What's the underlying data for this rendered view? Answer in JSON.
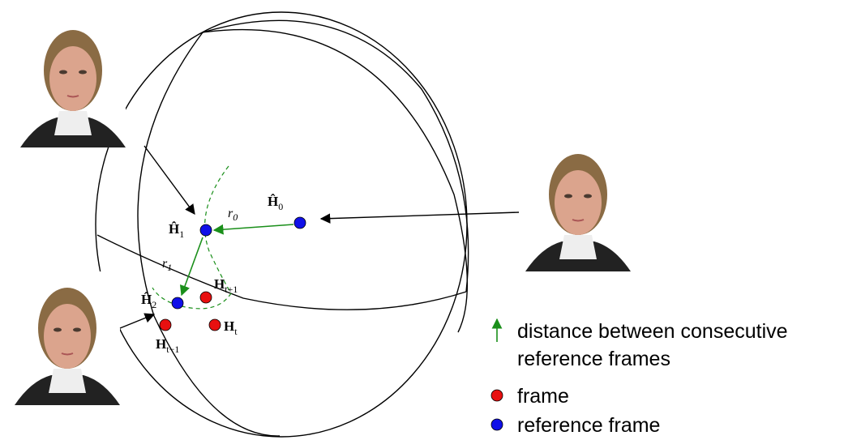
{
  "nodes": [
    {
      "symbol": "Ĥ",
      "subscript": "0"
    },
    {
      "symbol": "Ĥ",
      "subscript": "1"
    },
    {
      "symbol": "Ĥ",
      "subscript": "2"
    },
    {
      "symbol": "H",
      "subscript": "t+1"
    },
    {
      "symbol": "H",
      "subscript": "t"
    },
    {
      "symbol": "H",
      "subscript": "t−1"
    }
  ],
  "edge_labels": [
    {
      "symbol": "r",
      "subscript": "0"
    },
    {
      "symbol": "r",
      "subscript": "1"
    }
  ],
  "legend": [
    "distance between consecutive",
    "reference frames",
    "frame",
    "reference frame"
  ]
}
